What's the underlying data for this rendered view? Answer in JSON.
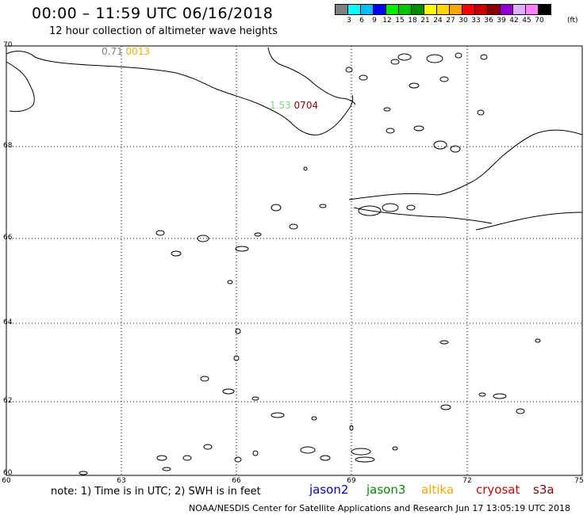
{
  "header": {
    "title": "00:00 – 11:59 UTC 06/16/2018",
    "subtitle": "12 hour collection of altimeter wave heights"
  },
  "colorbar": {
    "colors": [
      "#808080",
      "#00ffff",
      "#00bfff",
      "#0000ff",
      "#00ee00",
      "#00c800",
      "#008c00",
      "#ffff00",
      "#ffd700",
      "#ffa500",
      "#ff0000",
      "#c80000",
      "#8b0000",
      "#9400d3",
      "#e0b0ff",
      "#ff80ff",
      "#000000"
    ],
    "labels": [
      "3",
      "6",
      "9",
      "12",
      "15",
      "18",
      "21",
      "24",
      "27",
      "30",
      "33",
      "36",
      "39",
      "42",
      "45",
      "70"
    ],
    "unit": "(ft)"
  },
  "map": {
    "lat_labels": [
      "70",
      "68",
      "66",
      "64",
      "62",
      "60"
    ],
    "lon_labels": [
      "60",
      "63",
      "66",
      "69",
      "72",
      "75"
    ],
    "tracks": [
      {
        "prefix": "0.71",
        "time": "0013",
        "time_color": "#ffa500"
      },
      {
        "prefix": "1.53",
        "time": "0704",
        "time_color": "#8b0000"
      }
    ]
  },
  "legend": {
    "note": "note: 1) Time is in UTC; 2) SWH is in feet",
    "satellites": [
      {
        "name": "jason2",
        "color": "#0000cc"
      },
      {
        "name": "jason3",
        "color": "#008c00"
      },
      {
        "name": "altika",
        "color": "#ffa500"
      },
      {
        "name": "cryosat",
        "color": "#d00000"
      },
      {
        "name": "s3a",
        "color": "#8b0000"
      }
    ]
  },
  "footer": "NOAA/NESDIS Center for Satellite Applications and Research    Jun 17 13:05:19 UTC 2018"
}
